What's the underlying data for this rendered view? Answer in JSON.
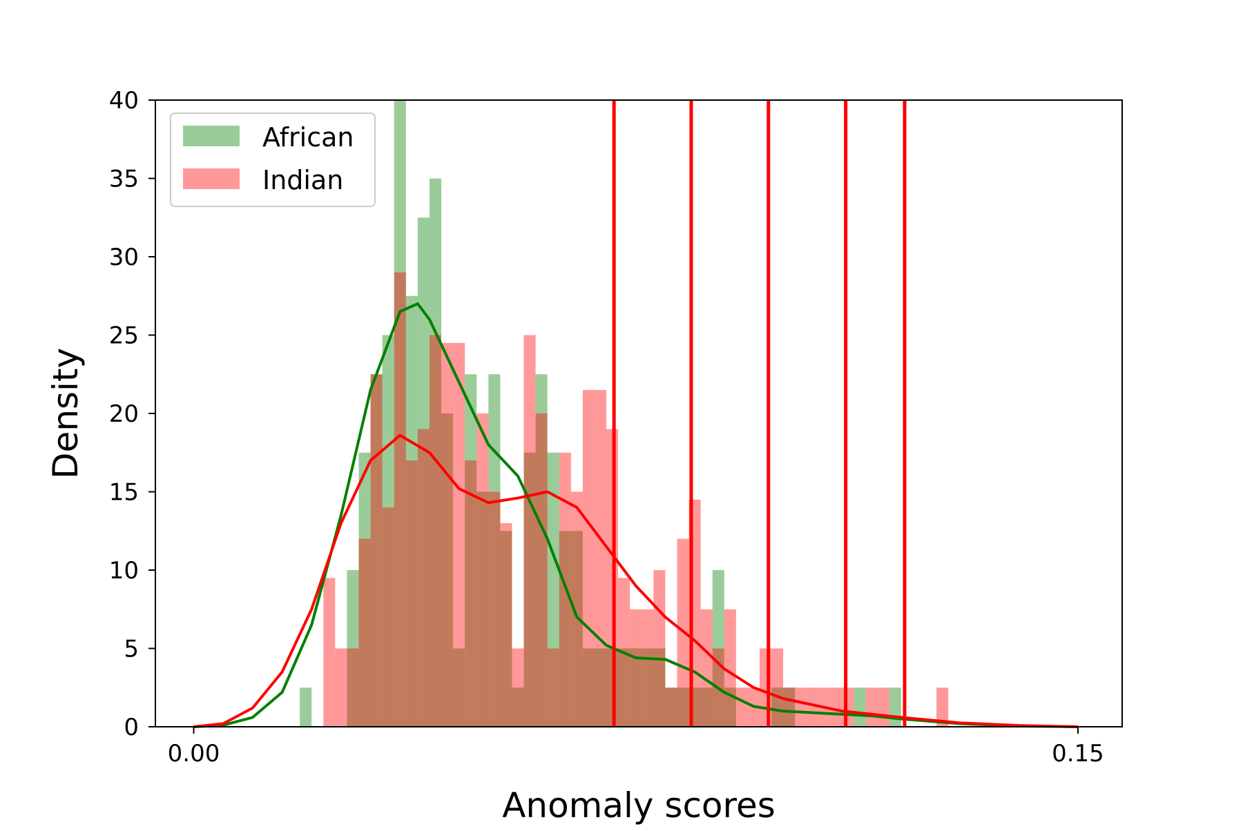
{
  "chart_data": {
    "type": "bar",
    "title": "",
    "xlabel": "Anomaly scores",
    "ylabel": "Density",
    "xlim": [
      -0.0065,
      0.1575
    ],
    "ylim": [
      0,
      40
    ],
    "x_ticks": [
      {
        "value": 0.0,
        "label": "0.00"
      },
      {
        "value": 0.15,
        "label": "0.15"
      }
    ],
    "y_ticks": [
      {
        "value": 0,
        "label": "0"
      },
      {
        "value": 5,
        "label": "5"
      },
      {
        "value": 10,
        "label": "10"
      },
      {
        "value": 15,
        "label": "15"
      },
      {
        "value": 20,
        "label": "20"
      },
      {
        "value": 25,
        "label": "25"
      },
      {
        "value": 30,
        "label": "30"
      },
      {
        "value": 35,
        "label": "35"
      },
      {
        "value": 40,
        "label": "40"
      }
    ],
    "grid": false,
    "legend": {
      "placement": "upper left"
    },
    "series": [
      {
        "name": "African",
        "kind": "histogram",
        "color": "#008000",
        "opacity": 0.4,
        "bin_width": 0.002,
        "bins": [
          [
            0.019,
            2.5
          ],
          [
            0.027,
            10
          ],
          [
            0.029,
            17.5
          ],
          [
            0.031,
            22.5
          ],
          [
            0.033,
            25
          ],
          [
            0.035,
            40
          ],
          [
            0.037,
            27.5
          ],
          [
            0.039,
            32.5
          ],
          [
            0.041,
            35
          ],
          [
            0.043,
            20
          ],
          [
            0.045,
            5
          ],
          [
            0.047,
            22.5
          ],
          [
            0.049,
            15
          ],
          [
            0.051,
            22.5
          ],
          [
            0.053,
            12.5
          ],
          [
            0.055,
            2.5
          ],
          [
            0.057,
            17.5
          ],
          [
            0.059,
            22.5
          ],
          [
            0.061,
            17.5
          ],
          [
            0.063,
            12.5
          ],
          [
            0.065,
            12.5
          ],
          [
            0.067,
            5
          ],
          [
            0.069,
            5
          ],
          [
            0.071,
            5
          ],
          [
            0.073,
            5
          ],
          [
            0.075,
            5
          ],
          [
            0.077,
            5
          ],
          [
            0.079,
            5
          ],
          [
            0.081,
            2.5
          ],
          [
            0.083,
            2.5
          ],
          [
            0.085,
            2.5
          ],
          [
            0.087,
            2.5
          ],
          [
            0.089,
            10
          ],
          [
            0.091,
            2.5
          ],
          [
            0.099,
            2.5
          ],
          [
            0.101,
            2.5
          ],
          [
            0.113,
            2.5
          ],
          [
            0.119,
            2.5
          ]
        ],
        "kde_color": "#008000",
        "kde": [
          [
            0.0,
            0
          ],
          [
            0.005,
            0.1
          ],
          [
            0.01,
            0.6
          ],
          [
            0.015,
            2.2
          ],
          [
            0.02,
            6.5
          ],
          [
            0.025,
            13.5
          ],
          [
            0.03,
            21.5
          ],
          [
            0.035,
            26.5
          ],
          [
            0.038,
            27
          ],
          [
            0.04,
            26
          ],
          [
            0.045,
            22
          ],
          [
            0.05,
            18
          ],
          [
            0.055,
            16
          ],
          [
            0.06,
            12
          ],
          [
            0.065,
            7
          ],
          [
            0.07,
            5.2
          ],
          [
            0.075,
            4.4
          ],
          [
            0.08,
            4.3
          ],
          [
            0.085,
            3.5
          ],
          [
            0.09,
            2.2
          ],
          [
            0.095,
            1.3
          ],
          [
            0.1,
            1.0
          ],
          [
            0.11,
            0.8
          ],
          [
            0.115,
            0.7
          ],
          [
            0.12,
            0.5
          ],
          [
            0.13,
            0.2
          ],
          [
            0.14,
            0.05
          ],
          [
            0.15,
            0
          ]
        ]
      },
      {
        "name": "Indian",
        "kind": "histogram",
        "color": "#ff0000",
        "opacity": 0.4,
        "bin_width": 0.002,
        "bins": [
          [
            0.023,
            9.5
          ],
          [
            0.025,
            5
          ],
          [
            0.027,
            5
          ],
          [
            0.029,
            12
          ],
          [
            0.031,
            22.5
          ],
          [
            0.033,
            14
          ],
          [
            0.035,
            29
          ],
          [
            0.037,
            17
          ],
          [
            0.039,
            19
          ],
          [
            0.041,
            25
          ],
          [
            0.043,
            24.5
          ],
          [
            0.045,
            24.5
          ],
          [
            0.047,
            17
          ],
          [
            0.049,
            20
          ],
          [
            0.051,
            15
          ],
          [
            0.053,
            13
          ],
          [
            0.055,
            5
          ],
          [
            0.057,
            25
          ],
          [
            0.059,
            20
          ],
          [
            0.061,
            5
          ],
          [
            0.063,
            17.5
          ],
          [
            0.065,
            15
          ],
          [
            0.067,
            21.5
          ],
          [
            0.069,
            21.5
          ],
          [
            0.071,
            19
          ],
          [
            0.073,
            9.5
          ],
          [
            0.075,
            7.5
          ],
          [
            0.077,
            7.5
          ],
          [
            0.079,
            10
          ],
          [
            0.081,
            2.5
          ],
          [
            0.083,
            12
          ],
          [
            0.085,
            14.5
          ],
          [
            0.087,
            7.5
          ],
          [
            0.089,
            5
          ],
          [
            0.091,
            7.5
          ],
          [
            0.093,
            2.5
          ],
          [
            0.095,
            2.5
          ],
          [
            0.097,
            5
          ],
          [
            0.099,
            5
          ],
          [
            0.101,
            2.5
          ],
          [
            0.103,
            2.5
          ],
          [
            0.105,
            2.5
          ],
          [
            0.107,
            2.5
          ],
          [
            0.109,
            2.5
          ],
          [
            0.111,
            2.5
          ],
          [
            0.115,
            2.5
          ],
          [
            0.117,
            2.5
          ],
          [
            0.127,
            2.5
          ]
        ],
        "kde_color": "#ff0000",
        "kde": [
          [
            0.0,
            0
          ],
          [
            0.005,
            0.2
          ],
          [
            0.01,
            1.2
          ],
          [
            0.015,
            3.5
          ],
          [
            0.02,
            7.5
          ],
          [
            0.025,
            13
          ],
          [
            0.03,
            17
          ],
          [
            0.035,
            18.6
          ],
          [
            0.04,
            17.5
          ],
          [
            0.045,
            15.2
          ],
          [
            0.05,
            14.3
          ],
          [
            0.055,
            14.6
          ],
          [
            0.06,
            15
          ],
          [
            0.065,
            14
          ],
          [
            0.07,
            11.5
          ],
          [
            0.075,
            9
          ],
          [
            0.08,
            7
          ],
          [
            0.085,
            5.5
          ],
          [
            0.09,
            3.7
          ],
          [
            0.095,
            2.5
          ],
          [
            0.1,
            1.8
          ],
          [
            0.11,
            1.0
          ],
          [
            0.12,
            0.6
          ],
          [
            0.13,
            0.25
          ],
          [
            0.14,
            0.08
          ],
          [
            0.15,
            0
          ]
        ]
      }
    ],
    "vlines": {
      "color": "#ff0000",
      "x": [
        0.0713,
        0.0844,
        0.0975,
        0.1106,
        0.1206
      ]
    }
  }
}
